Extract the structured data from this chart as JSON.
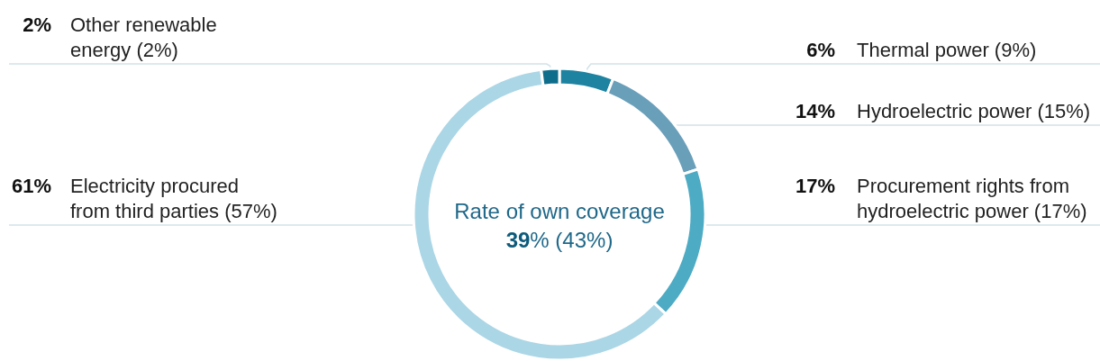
{
  "chart_data": {
    "type": "donut",
    "categories": [
      "Thermal power (9%)",
      "Hydroelectric power (15%)",
      "Procurement rights from hydroelectric power (17%)",
      "Electricity procured from third parties (57%)",
      "Other renewable energy (2%)"
    ],
    "values": [
      6,
      14,
      17,
      61,
      2
    ],
    "colors": [
      "#1e83a1",
      "#6a9fba",
      "#4dabc4",
      "#abd6e6",
      "#0e6d8b"
    ],
    "value_labels": [
      "6%",
      "14%",
      "17%",
      "61%",
      "2%"
    ],
    "annotations": [
      "Rate of own coverage",
      "39% (43%)"
    ]
  }
}
